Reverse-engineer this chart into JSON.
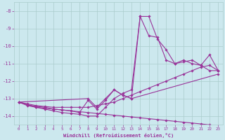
{
  "xlabel": "Windchill (Refroidissement éolien,°C)",
  "bg_color": "#cce8ee",
  "grid_color": "#aacccc",
  "line_color": "#993399",
  "xlim": [
    -0.5,
    23.5
  ],
  "ylim": [
    -14.5,
    -7.5
  ],
  "xticks": [
    0,
    1,
    2,
    3,
    4,
    5,
    6,
    7,
    8,
    9,
    10,
    11,
    12,
    13,
    14,
    15,
    16,
    17,
    18,
    19,
    20,
    21,
    22,
    23
  ],
  "yticks": [
    -14,
    -13,
    -12,
    -11,
    -10,
    -9,
    -8
  ],
  "series": [
    {
      "x": [
        0,
        1,
        2,
        3,
        4,
        5,
        6,
        7,
        8,
        9,
        10,
        11,
        12,
        13,
        14,
        15,
        16,
        17,
        18,
        19,
        20,
        21,
        22,
        23
      ],
      "y": [
        -13.2,
        -13.35,
        -13.5,
        -13.55,
        -13.6,
        -13.65,
        -13.7,
        -13.75,
        -13.8,
        -13.85,
        -13.9,
        -13.95,
        -14.0,
        -14.05,
        -14.1,
        -14.15,
        -14.2,
        -14.25,
        -14.3,
        -14.35,
        -14.4,
        -14.45,
        -14.5,
        -14.55
      ]
    },
    {
      "x": [
        0,
        1,
        2,
        3,
        4,
        5,
        6,
        7,
        8,
        9,
        10,
        11,
        12,
        13,
        14,
        15,
        16,
        17,
        18,
        19,
        20,
        21,
        22,
        23
      ],
      "y": [
        -13.2,
        -13.3,
        -13.4,
        -13.45,
        -13.5,
        -13.5,
        -13.5,
        -13.5,
        -13.5,
        -13.4,
        -13.3,
        -13.2,
        -13.0,
        -12.8,
        -12.6,
        -12.4,
        -12.2,
        -12.0,
        -11.8,
        -11.6,
        -11.4,
        -11.2,
        -11.1,
        -11.4
      ]
    },
    {
      "x": [
        0,
        1,
        2,
        3,
        4,
        5,
        6,
        7,
        8,
        9,
        10,
        11,
        12,
        13,
        14,
        15,
        16,
        17,
        18,
        19,
        20,
        21,
        22,
        23
      ],
      "y": [
        -13.2,
        -13.4,
        -13.5,
        -13.6,
        -13.7,
        -13.8,
        -13.85,
        -13.9,
        -14.0,
        -14.0,
        -13.5,
        -13.0,
        -12.7,
        -12.5,
        -8.3,
        -9.4,
        -9.5,
        -10.8,
        -11.0,
        -10.8,
        -11.0,
        -11.1,
        -10.5,
        -11.4
      ]
    },
    {
      "x": [
        0,
        1,
        2,
        3,
        4,
        5,
        6,
        7,
        8,
        9,
        10,
        11,
        12,
        13,
        14,
        15,
        16,
        17,
        18,
        19,
        20,
        21,
        22,
        23
      ],
      "y": [
        -13.2,
        -13.35,
        -13.45,
        -13.5,
        -13.6,
        -13.65,
        -13.7,
        -13.8,
        -13.1,
        -13.6,
        -13.1,
        -12.5,
        -12.8,
        -13.0,
        -8.3,
        -8.3,
        -9.6,
        -10.2,
        -11.0,
        -10.9,
        -10.8,
        -11.1,
        -11.4,
        -11.4
      ]
    },
    {
      "x": [
        0,
        8,
        9,
        10,
        11,
        12,
        13,
        23
      ],
      "y": [
        -13.2,
        -13.0,
        -13.5,
        -13.0,
        -12.5,
        -12.8,
        -13.0,
        -11.6
      ]
    }
  ]
}
